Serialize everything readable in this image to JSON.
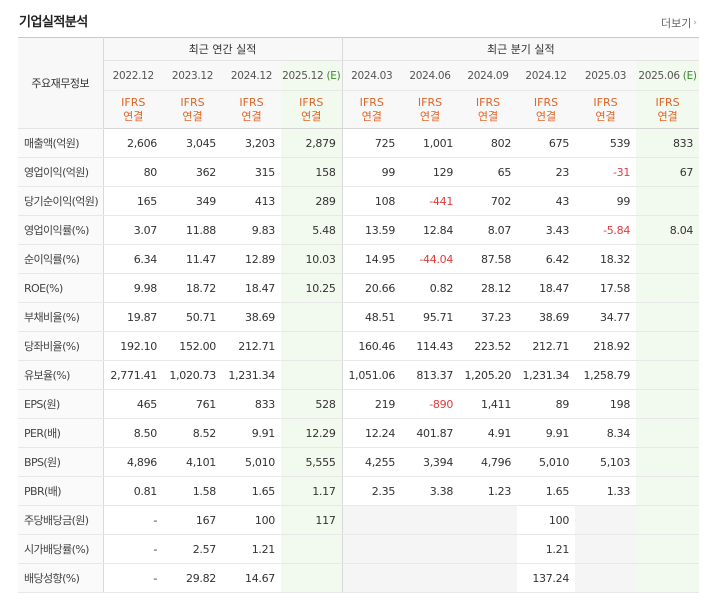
{
  "header": {
    "title": "기업실적분석",
    "more_label": "더보기"
  },
  "table": {
    "corner_label": "주요재무정보",
    "annual_group": "최근 연간 실적",
    "quarter_group": "최근 분기 실적",
    "estimate_mark": "(E)",
    "periods": [
      {
        "label": "2022.12",
        "est": false
      },
      {
        "label": "2023.12",
        "est": false
      },
      {
        "label": "2024.12",
        "est": false
      },
      {
        "label": "2025.12",
        "est": true
      },
      {
        "label": "2024.03",
        "est": false
      },
      {
        "label": "2024.06",
        "est": false
      },
      {
        "label": "2024.09",
        "est": false
      },
      {
        "label": "2024.12",
        "est": false
      },
      {
        "label": "2025.03",
        "est": false
      },
      {
        "label": "2025.06",
        "est": true
      }
    ],
    "ifrs_line1": "IFRS",
    "ifrs_line2": "연결",
    "rows": [
      {
        "label": "매출액(억원)",
        "values": [
          "2,606",
          "3,045",
          "3,203",
          "2,879",
          "725",
          "1,001",
          "802",
          "675",
          "539",
          "833"
        ],
        "group_start": true
      },
      {
        "label": "영업이익(억원)",
        "values": [
          "80",
          "362",
          "315",
          "158",
          "99",
          "129",
          "65",
          "23",
          "-31",
          "67"
        ]
      },
      {
        "label": "당기순이익(억원)",
        "values": [
          "165",
          "349",
          "413",
          "289",
          "108",
          "-441",
          "702",
          "43",
          "99",
          ""
        ]
      },
      {
        "label": "영업이익률(%)",
        "values": [
          "3.07",
          "11.88",
          "9.83",
          "5.48",
          "13.59",
          "12.84",
          "8.07",
          "3.43",
          "-5.84",
          "8.04"
        ],
        "group_start": true
      },
      {
        "label": "순이익률(%)",
        "values": [
          "6.34",
          "11.47",
          "12.89",
          "10.03",
          "14.95",
          "-44.04",
          "87.58",
          "6.42",
          "18.32",
          ""
        ]
      },
      {
        "label": "ROE(%)",
        "values": [
          "9.98",
          "18.72",
          "18.47",
          "10.25",
          "20.66",
          "0.82",
          "28.12",
          "18.47",
          "17.58",
          ""
        ]
      },
      {
        "label": "부채비율(%)",
        "values": [
          "19.87",
          "50.71",
          "38.69",
          "",
          "48.51",
          "95.71",
          "37.23",
          "38.69",
          "34.77",
          ""
        ],
        "group_start": true
      },
      {
        "label": "당좌비율(%)",
        "values": [
          "192.10",
          "152.00",
          "212.71",
          "",
          "160.46",
          "114.43",
          "223.52",
          "212.71",
          "218.92",
          ""
        ]
      },
      {
        "label": "유보율(%)",
        "values": [
          "2,771.41",
          "1,020.73",
          "1,231.34",
          "",
          "1,051.06",
          "813.37",
          "1,205.20",
          "1,231.34",
          "1,258.79",
          ""
        ]
      },
      {
        "label": "EPS(원)",
        "values": [
          "465",
          "761",
          "833",
          "528",
          "219",
          "-890",
          "1,411",
          "89",
          "198",
          ""
        ],
        "group_start": true
      },
      {
        "label": "PER(배)",
        "values": [
          "8.50",
          "8.52",
          "9.91",
          "12.29",
          "12.24",
          "401.87",
          "4.91",
          "9.91",
          "8.34",
          ""
        ]
      },
      {
        "label": "BPS(원)",
        "values": [
          "4,896",
          "4,101",
          "5,010",
          "5,555",
          "4,255",
          "3,394",
          "4,796",
          "5,010",
          "5,103",
          ""
        ]
      },
      {
        "label": "PBR(배)",
        "values": [
          "0.81",
          "1.58",
          "1.65",
          "1.17",
          "2.35",
          "3.38",
          "1.23",
          "1.65",
          "1.33",
          ""
        ]
      },
      {
        "label": "주당배당금(원)",
        "values": [
          "-",
          "167",
          "100",
          "117",
          "",
          "",
          "",
          "100",
          "",
          ""
        ],
        "group_start": true,
        "shade_empty_quarters": true
      },
      {
        "label": "시가배당률(%)",
        "values": [
          "-",
          "2.57",
          "1.21",
          "",
          "",
          "",
          "",
          "1.21",
          "",
          ""
        ],
        "shade_empty_quarters": true
      },
      {
        "label": "배당성향(%)",
        "values": [
          "-",
          "29.82",
          "14.67",
          "",
          "",
          "",
          "",
          "137.24",
          "",
          ""
        ],
        "shade_empty_quarters": true
      }
    ]
  }
}
